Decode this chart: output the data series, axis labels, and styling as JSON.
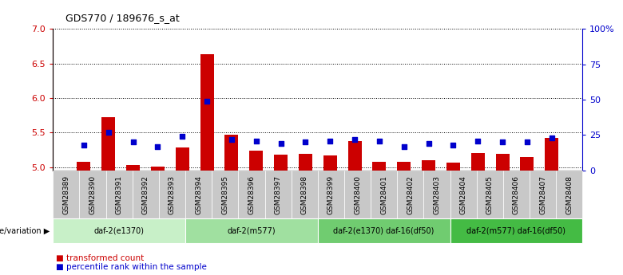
{
  "title": "GDS770 / 189676_s_at",
  "samples": [
    "GSM28389",
    "GSM28390",
    "GSM28391",
    "GSM28392",
    "GSM28393",
    "GSM28394",
    "GSM28395",
    "GSM28396",
    "GSM28397",
    "GSM28398",
    "GSM28399",
    "GSM28400",
    "GSM28401",
    "GSM28402",
    "GSM28403",
    "GSM28404",
    "GSM28405",
    "GSM28406",
    "GSM28407",
    "GSM28408"
  ],
  "transformed_count": [
    5.08,
    5.72,
    5.03,
    5.01,
    5.28,
    6.63,
    5.47,
    5.24,
    5.18,
    5.19,
    5.17,
    5.38,
    5.08,
    5.07,
    5.1,
    5.06,
    5.2,
    5.19,
    5.15,
    5.42
  ],
  "percentile_rank": [
    18,
    27,
    20,
    17,
    24,
    49,
    22,
    21,
    19,
    20,
    21,
    22,
    21,
    17,
    19,
    18,
    21,
    20,
    20,
    23
  ],
  "ylim_left": [
    4.95,
    7.0
  ],
  "ylim_right": [
    0,
    100
  ],
  "yticks_left": [
    5.0,
    5.5,
    6.0,
    6.5,
    7.0
  ],
  "yticks_right": [
    0,
    25,
    50,
    75,
    100
  ],
  "ytick_labels_right": [
    "0",
    "25",
    "50",
    "75",
    "100%"
  ],
  "groups": [
    {
      "label": "daf-2(e1370)",
      "start": 0,
      "end": 4,
      "color": "#c8f0c8"
    },
    {
      "label": "daf-2(m577)",
      "start": 5,
      "end": 9,
      "color": "#a0e0a0"
    },
    {
      "label": "daf-2(e1370) daf-16(df50)",
      "start": 10,
      "end": 14,
      "color": "#70cc70"
    },
    {
      "label": "daf-2(m577) daf-16(df50)",
      "start": 15,
      "end": 19,
      "color": "#44bb44"
    }
  ],
  "group_label": "genotype/variation",
  "bar_color": "#cc0000",
  "dot_color": "#0000cc",
  "background_color": "#ffffff",
  "grid_color": "#000000",
  "tick_bg_color": "#c8c8c8",
  "legend_items": [
    "transformed count",
    "percentile rank within the sample"
  ]
}
